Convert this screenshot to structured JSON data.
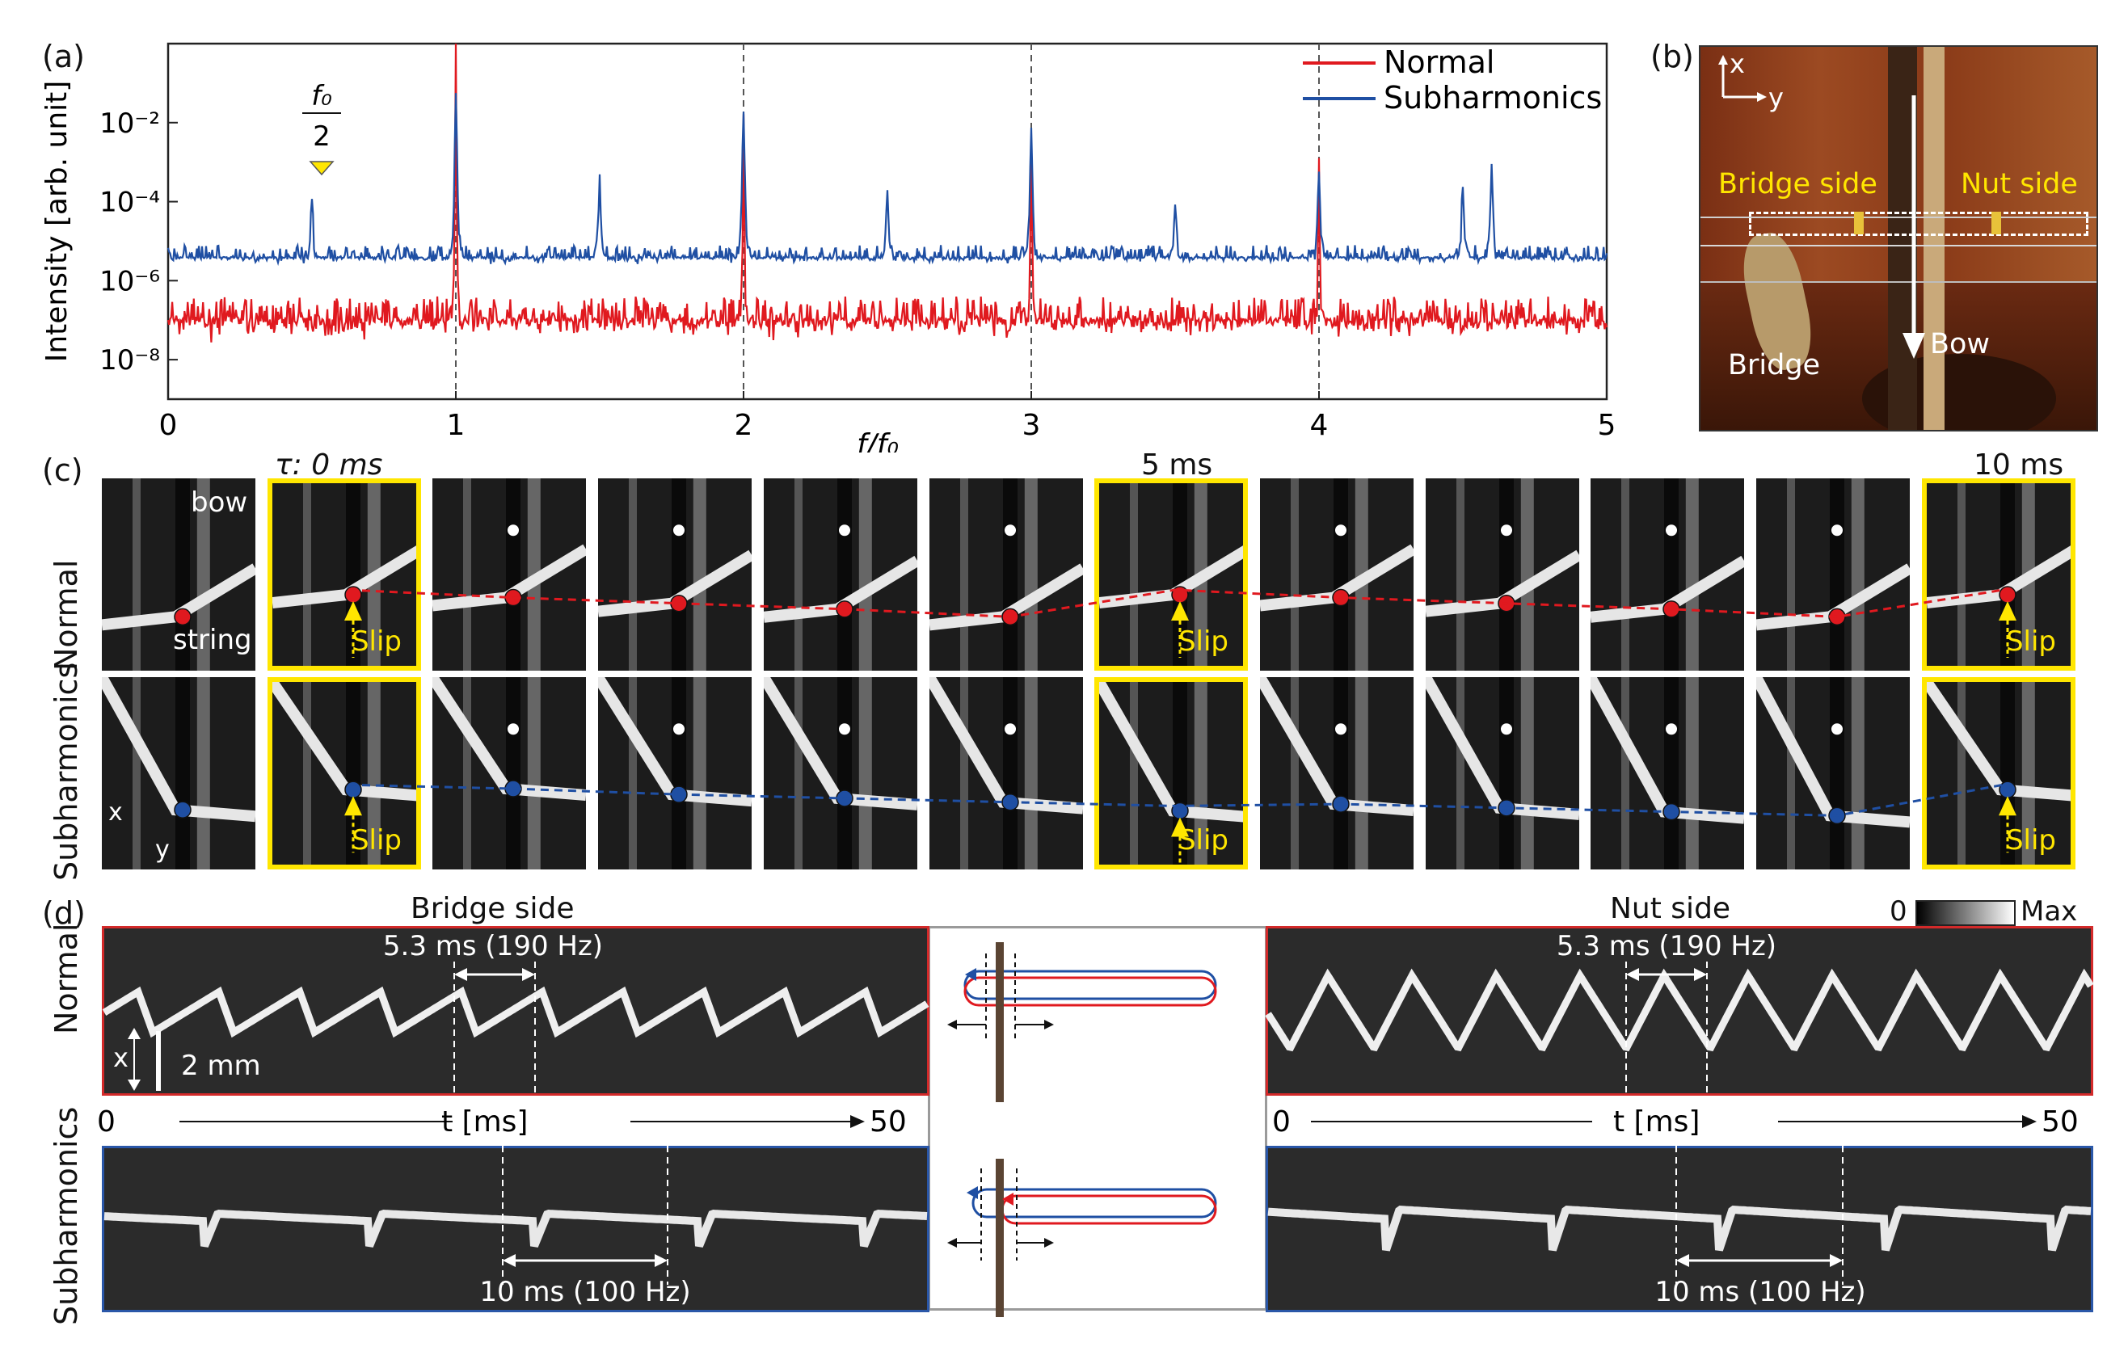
{
  "panel_a": {
    "label": "(a)",
    "ylabel": "Intensity [arb. unit]",
    "xlabel": "f/f₀",
    "annotation_num": "f₀",
    "annotation_den": "2",
    "colors": {
      "normal": "#e0191f",
      "subharmonics": "#1f4fa3"
    },
    "chart_data": {
      "type": "line",
      "xlim": [
        0,
        5
      ],
      "ylim_log10": [
        -9,
        0
      ],
      "yscale": "log",
      "x_ticks": [
        "0",
        "1",
        "2",
        "3",
        "4",
        "5"
      ],
      "y_ticks": [
        "10⁻²",
        "10⁻⁴",
        "10⁻⁶",
        "10⁻⁸"
      ],
      "vlines": [
        1,
        2,
        3,
        4
      ],
      "legend": "top-right",
      "series": [
        {
          "name": "Normal",
          "peaks": [
            [
              1.0,
              0.0
            ],
            [
              2.0,
              -1.7
            ],
            [
              3.0,
              -2.5
            ],
            [
              4.0,
              -2.8
            ]
          ],
          "baseline_log10": -7.3
        },
        {
          "name": "Subharmonics",
          "peaks": [
            [
              0.5,
              -4.0
            ],
            [
              1.0,
              -1.3
            ],
            [
              1.5,
              -3.5
            ],
            [
              2.0,
              -1.6
            ],
            [
              2.5,
              -3.8
            ],
            [
              3.0,
              -2.3
            ],
            [
              3.5,
              -3.9
            ],
            [
              4.0,
              -3.2
            ],
            [
              4.5,
              -3.5
            ],
            [
              4.6,
              -3.1
            ],
            [
              5.0,
              -6.0
            ]
          ],
          "baseline_log10": -5.6
        }
      ]
    }
  },
  "panel_b": {
    "label": "(b)",
    "x": "x",
    "y": "y",
    "bridge_side": "Bridge side",
    "nut_side": "Nut side",
    "bow": "Bow",
    "bridge": "Bridge"
  },
  "panel_c": {
    "label": "(c)",
    "tau": "τ: 0 ms",
    "t5": "5 ms",
    "t10": "10 ms",
    "row_normal": "Normal",
    "row_sub": "Subharmonics",
    "bow": "bow",
    "string": "string",
    "slip": "Slip",
    "x": "x",
    "y": "y"
  },
  "panel_d": {
    "label": "(d)",
    "bridge_side": "Bridge side",
    "nut_side": "Nut side",
    "row_normal": "Normal",
    "row_sub": "Subharmonics",
    "colorbar_min": "0",
    "colorbar_max": "Max",
    "normal_period": "5.3 ms (190 Hz)",
    "sub_period": "10 ms (100 Hz)",
    "scale_bar": "2 mm",
    "x": "x",
    "t_axis": "t [ms]",
    "t_start": "0",
    "t_end": "50"
  }
}
